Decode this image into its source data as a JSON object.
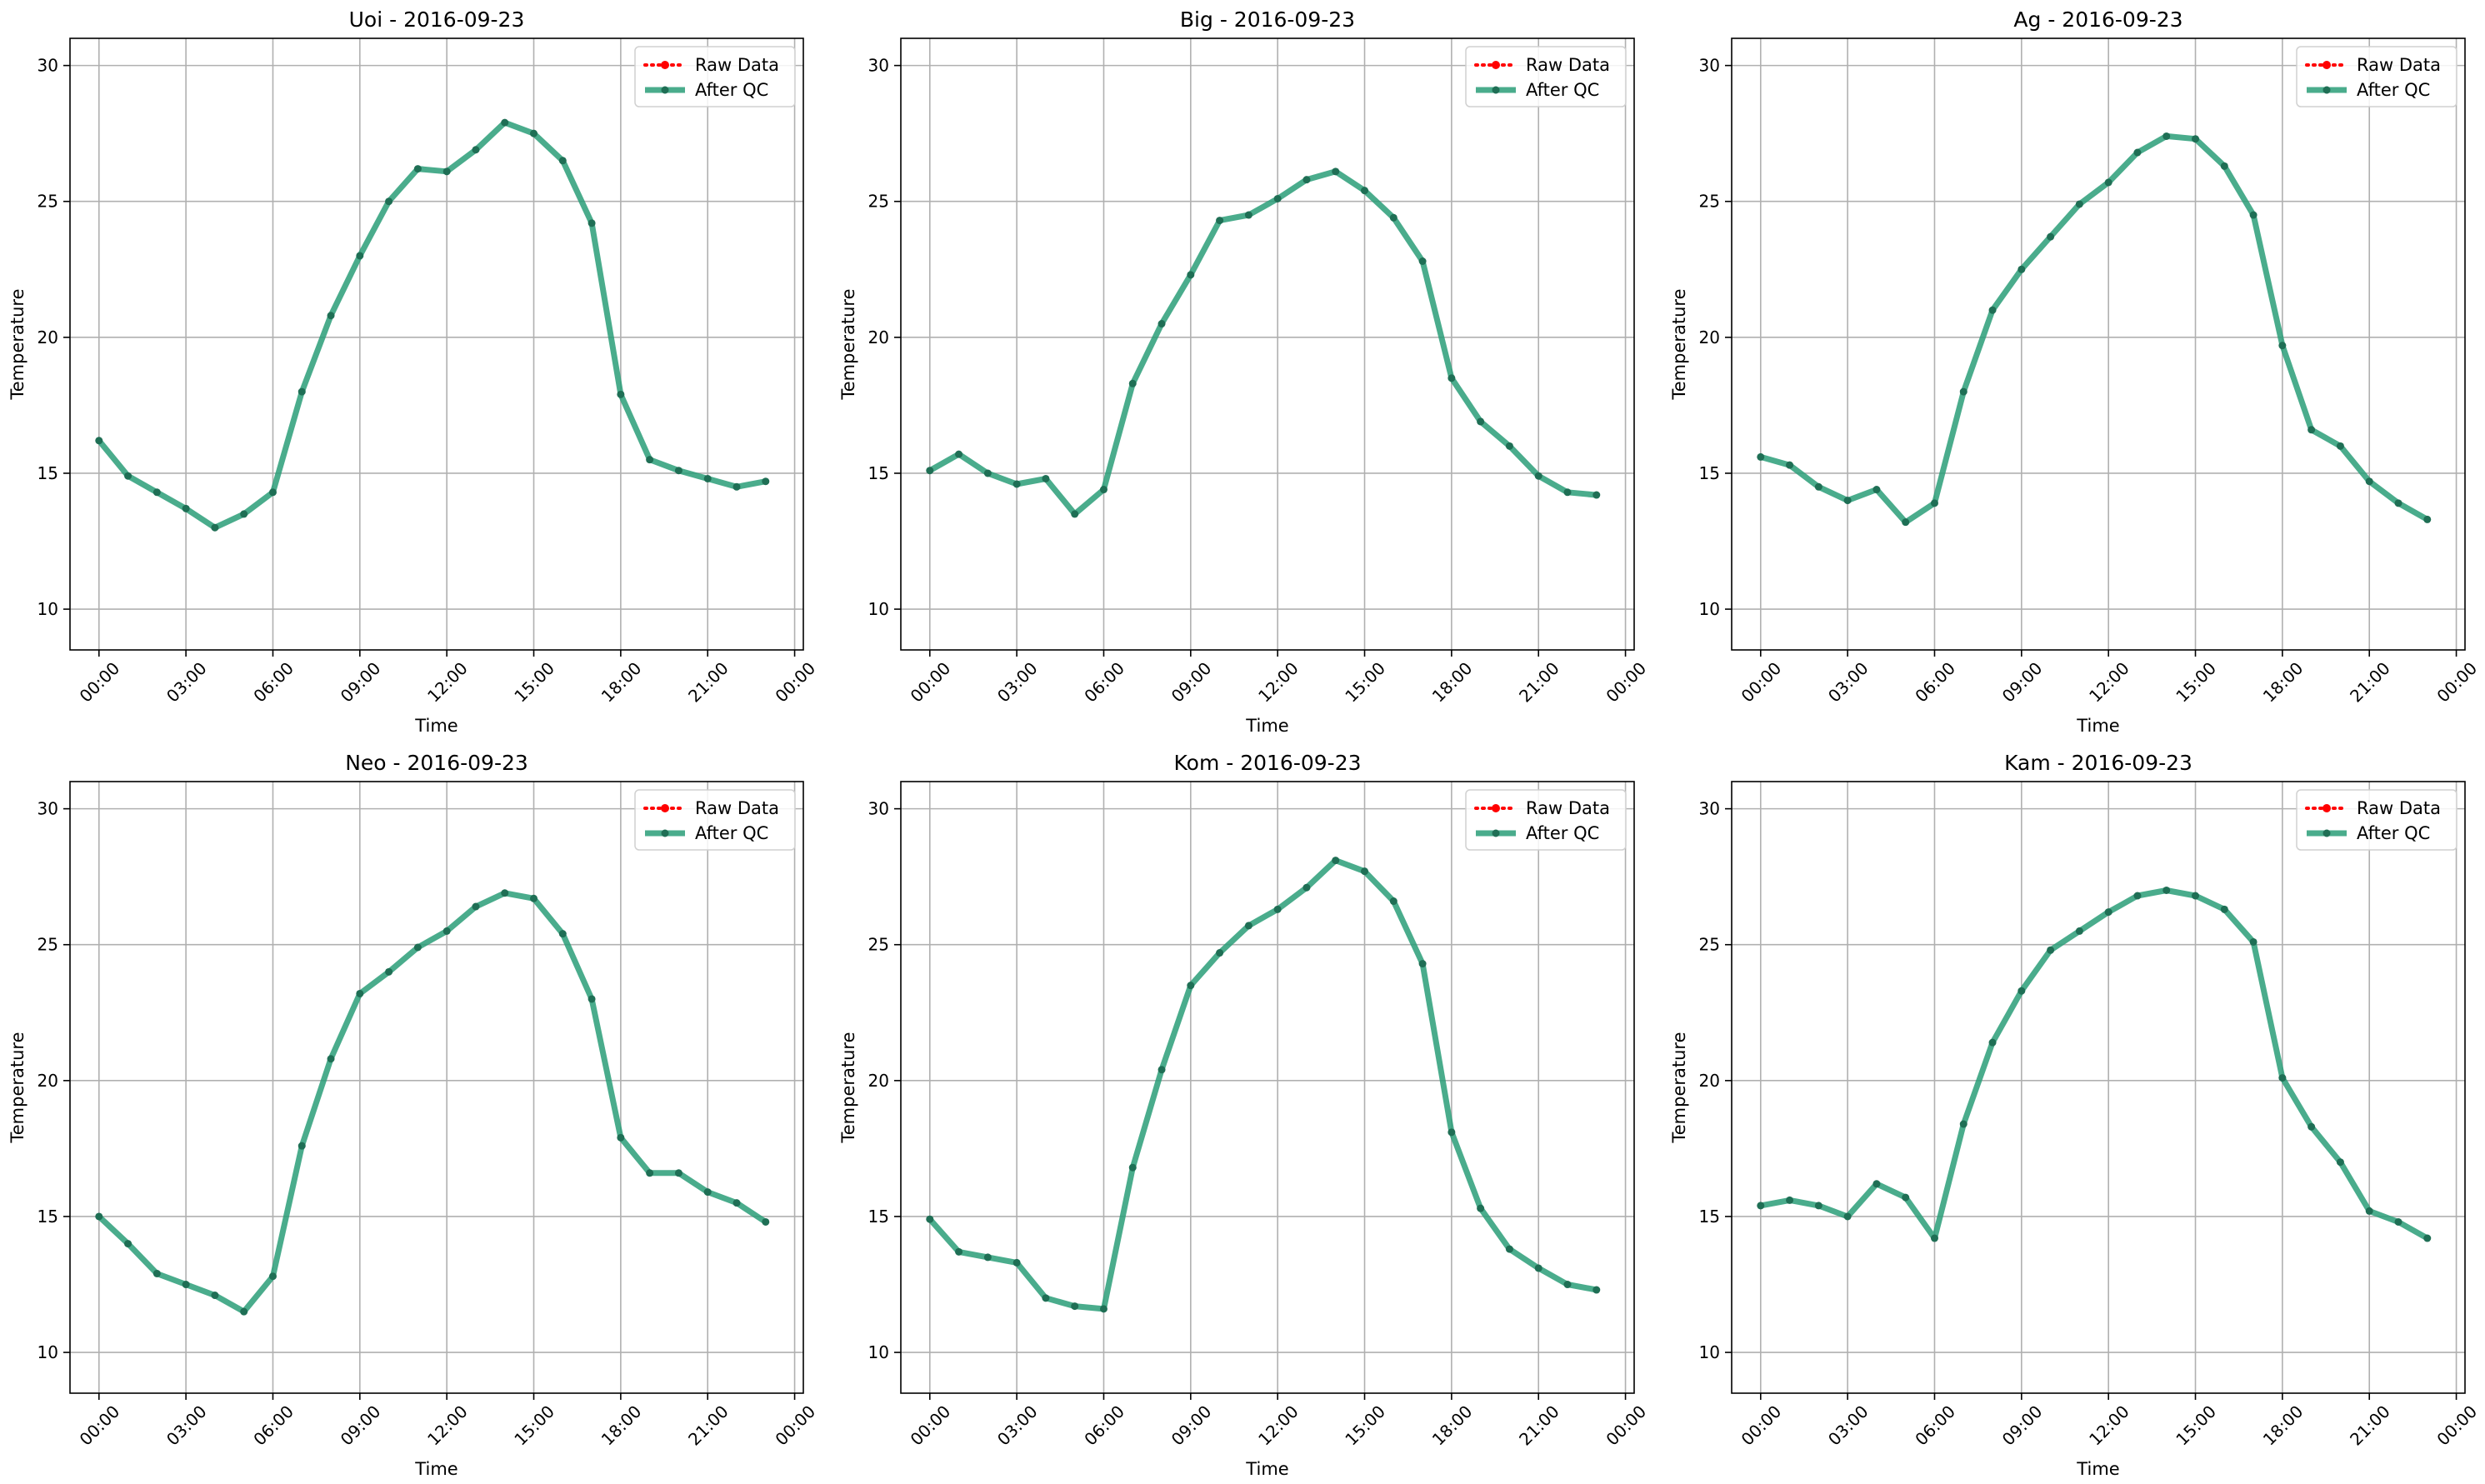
{
  "figure": {
    "legend_labels": {
      "raw": "Raw Data",
      "qc": "After QC"
    },
    "colors": {
      "raw": "#ff0000",
      "qc": "#2a9d78",
      "qc_marker": "#1f6f55",
      "grid": "#b0b0b0"
    }
  },
  "chart_data": [
    {
      "type": "line",
      "title": "Uoi - 2016-09-23",
      "xlabel": "Time",
      "ylabel": "Temperature",
      "x_ticks": [
        "00:00",
        "03:00",
        "06:00",
        "09:00",
        "12:00",
        "15:00",
        "18:00",
        "21:00",
        "00:00"
      ],
      "y_ticks": [
        "10",
        "15",
        "20",
        "25",
        "30"
      ],
      "ylim": [
        8.5,
        31
      ],
      "xlim_hours": [
        -1,
        24.3
      ],
      "grid": true,
      "legend": "upper right",
      "x_hours": [
        0,
        1,
        2,
        3,
        4,
        5,
        6,
        7,
        8,
        9,
        10,
        11,
        12,
        13,
        14,
        15,
        16,
        17,
        18,
        19,
        20,
        21,
        22,
        23
      ],
      "series": [
        {
          "name": "Raw Data",
          "values": [
            16.2,
            14.9,
            14.3,
            13.7,
            13.0,
            13.5,
            14.3,
            18.0,
            20.8,
            23.0,
            25.0,
            26.2,
            26.1,
            26.9,
            27.9,
            27.5,
            26.5,
            24.2,
            17.9,
            15.5,
            15.1,
            14.8,
            14.5,
            14.7
          ]
        },
        {
          "name": "After QC",
          "values": [
            16.2,
            14.9,
            14.3,
            13.7,
            13.0,
            13.5,
            14.3,
            18.0,
            20.8,
            23.0,
            25.0,
            26.2,
            26.1,
            26.9,
            27.9,
            27.5,
            26.5,
            24.2,
            17.9,
            15.5,
            15.1,
            14.8,
            14.5,
            14.7
          ]
        }
      ]
    },
    {
      "type": "line",
      "title": "Big - 2016-09-23",
      "xlabel": "Time",
      "ylabel": "Temperature",
      "x_ticks": [
        "00:00",
        "03:00",
        "06:00",
        "09:00",
        "12:00",
        "15:00",
        "18:00",
        "21:00",
        "00:00"
      ],
      "y_ticks": [
        "10",
        "15",
        "20",
        "25",
        "30"
      ],
      "ylim": [
        8.5,
        31
      ],
      "xlim_hours": [
        -1,
        24.3
      ],
      "grid": true,
      "legend": "upper right",
      "x_hours": [
        0,
        1,
        2,
        3,
        4,
        5,
        6,
        7,
        8,
        9,
        10,
        11,
        12,
        13,
        14,
        15,
        16,
        17,
        18,
        19,
        20,
        21,
        22,
        23
      ],
      "series": [
        {
          "name": "Raw Data",
          "values": [
            15.1,
            15.7,
            15.0,
            14.6,
            14.8,
            13.5,
            14.4,
            18.3,
            20.5,
            22.3,
            24.3,
            24.5,
            25.1,
            25.8,
            26.1,
            25.4,
            24.4,
            22.8,
            18.5,
            16.9,
            16.0,
            14.9,
            14.3,
            14.2
          ]
        },
        {
          "name": "After QC",
          "values": [
            15.1,
            15.7,
            15.0,
            14.6,
            14.8,
            13.5,
            14.4,
            18.3,
            20.5,
            22.3,
            24.3,
            24.5,
            25.1,
            25.8,
            26.1,
            25.4,
            24.4,
            22.8,
            18.5,
            16.9,
            16.0,
            14.9,
            14.3,
            14.2
          ]
        }
      ]
    },
    {
      "type": "line",
      "title": "Ag - 2016-09-23",
      "xlabel": "Time",
      "ylabel": "Temperature",
      "x_ticks": [
        "00:00",
        "03:00",
        "06:00",
        "09:00",
        "12:00",
        "15:00",
        "18:00",
        "21:00",
        "00:00"
      ],
      "y_ticks": [
        "10",
        "15",
        "20",
        "25",
        "30"
      ],
      "ylim": [
        8.5,
        31
      ],
      "xlim_hours": [
        -1,
        24.3
      ],
      "grid": true,
      "legend": "upper right",
      "x_hours": [
        0,
        1,
        2,
        3,
        4,
        5,
        6,
        7,
        8,
        9,
        10,
        11,
        12,
        13,
        14,
        15,
        16,
        17,
        18,
        19,
        20,
        21,
        22,
        23
      ],
      "series": [
        {
          "name": "Raw Data",
          "values": [
            15.6,
            15.3,
            14.5,
            14.0,
            14.4,
            13.2,
            13.9,
            18.0,
            21.0,
            22.5,
            23.7,
            24.9,
            25.7,
            26.8,
            27.4,
            27.3,
            26.3,
            24.5,
            19.7,
            16.6,
            16.0,
            14.7,
            13.9,
            13.3
          ]
        },
        {
          "name": "After QC",
          "values": [
            15.6,
            15.3,
            14.5,
            14.0,
            14.4,
            13.2,
            13.9,
            18.0,
            21.0,
            22.5,
            23.7,
            24.9,
            25.7,
            26.8,
            27.4,
            27.3,
            26.3,
            24.5,
            19.7,
            16.6,
            16.0,
            14.7,
            13.9,
            13.3
          ]
        }
      ]
    },
    {
      "type": "line",
      "title": "Neo - 2016-09-23",
      "xlabel": "Time",
      "ylabel": "Temperature",
      "x_ticks": [
        "00:00",
        "03:00",
        "06:00",
        "09:00",
        "12:00",
        "15:00",
        "18:00",
        "21:00",
        "00:00"
      ],
      "y_ticks": [
        "10",
        "15",
        "20",
        "25",
        "30"
      ],
      "ylim": [
        8.5,
        31
      ],
      "xlim_hours": [
        -1,
        24.3
      ],
      "grid": true,
      "legend": "upper right",
      "x_hours": [
        0,
        1,
        2,
        3,
        4,
        5,
        6,
        7,
        8,
        9,
        10,
        11,
        12,
        13,
        14,
        15,
        16,
        17,
        18,
        19,
        20,
        21,
        22,
        23
      ],
      "series": [
        {
          "name": "Raw Data",
          "values": [
            15.0,
            14.0,
            12.9,
            12.5,
            12.1,
            11.5,
            12.8,
            17.6,
            20.8,
            23.2,
            24.0,
            24.9,
            25.5,
            26.4,
            26.9,
            26.7,
            25.4,
            23.0,
            17.9,
            16.6,
            16.6,
            15.9,
            15.5,
            14.8
          ]
        },
        {
          "name": "After QC",
          "values": [
            15.0,
            14.0,
            12.9,
            12.5,
            12.1,
            11.5,
            12.8,
            17.6,
            20.8,
            23.2,
            24.0,
            24.9,
            25.5,
            26.4,
            26.9,
            26.7,
            25.4,
            23.0,
            17.9,
            16.6,
            16.6,
            15.9,
            15.5,
            14.8
          ]
        }
      ]
    },
    {
      "type": "line",
      "title": "Kom - 2016-09-23",
      "xlabel": "Time",
      "ylabel": "Temperature",
      "x_ticks": [
        "00:00",
        "03:00",
        "06:00",
        "09:00",
        "12:00",
        "15:00",
        "18:00",
        "21:00",
        "00:00"
      ],
      "y_ticks": [
        "10",
        "15",
        "20",
        "25",
        "30"
      ],
      "ylim": [
        8.5,
        31
      ],
      "xlim_hours": [
        -1,
        24.3
      ],
      "grid": true,
      "legend": "upper right",
      "x_hours": [
        0,
        1,
        2,
        3,
        4,
        5,
        6,
        7,
        8,
        9,
        10,
        11,
        12,
        13,
        14,
        15,
        16,
        17,
        18,
        19,
        20,
        21,
        22,
        23
      ],
      "series": [
        {
          "name": "Raw Data",
          "values": [
            14.9,
            13.7,
            13.5,
            13.3,
            12.0,
            11.7,
            11.6,
            16.8,
            20.4,
            23.5,
            24.7,
            25.7,
            26.3,
            27.1,
            28.1,
            27.7,
            26.6,
            24.3,
            18.1,
            15.3,
            13.8,
            13.1,
            12.5,
            12.3
          ]
        },
        {
          "name": "After QC",
          "values": [
            14.9,
            13.7,
            13.5,
            13.3,
            12.0,
            11.7,
            11.6,
            16.8,
            20.4,
            23.5,
            24.7,
            25.7,
            26.3,
            27.1,
            28.1,
            27.7,
            26.6,
            24.3,
            18.1,
            15.3,
            13.8,
            13.1,
            12.5,
            12.3
          ]
        }
      ]
    },
    {
      "type": "line",
      "title": "Kam - 2016-09-23",
      "xlabel": "Time",
      "ylabel": "Temperature",
      "x_ticks": [
        "00:00",
        "03:00",
        "06:00",
        "09:00",
        "12:00",
        "15:00",
        "18:00",
        "21:00",
        "00:00"
      ],
      "y_ticks": [
        "10",
        "15",
        "20",
        "25",
        "30"
      ],
      "ylim": [
        8.5,
        31
      ],
      "xlim_hours": [
        -1,
        24.3
      ],
      "grid": true,
      "legend": "upper right",
      "x_hours": [
        0,
        1,
        2,
        3,
        4,
        5,
        6,
        7,
        8,
        9,
        10,
        11,
        12,
        13,
        14,
        15,
        16,
        17,
        18,
        19,
        20,
        21,
        22,
        23
      ],
      "series": [
        {
          "name": "Raw Data",
          "values": [
            15.4,
            15.6,
            15.4,
            15.0,
            16.2,
            15.7,
            14.2,
            18.4,
            21.4,
            23.3,
            24.8,
            25.5,
            26.2,
            26.8,
            27.0,
            26.8,
            26.3,
            25.1,
            20.1,
            18.3,
            17.0,
            15.2,
            14.8,
            14.2
          ]
        },
        {
          "name": "After QC",
          "values": [
            15.4,
            15.6,
            15.4,
            15.0,
            16.2,
            15.7,
            14.2,
            18.4,
            21.4,
            23.3,
            24.8,
            25.5,
            26.2,
            26.8,
            27.0,
            26.8,
            26.3,
            25.1,
            20.1,
            18.3,
            17.0,
            15.2,
            14.8,
            14.2
          ]
        }
      ]
    }
  ]
}
